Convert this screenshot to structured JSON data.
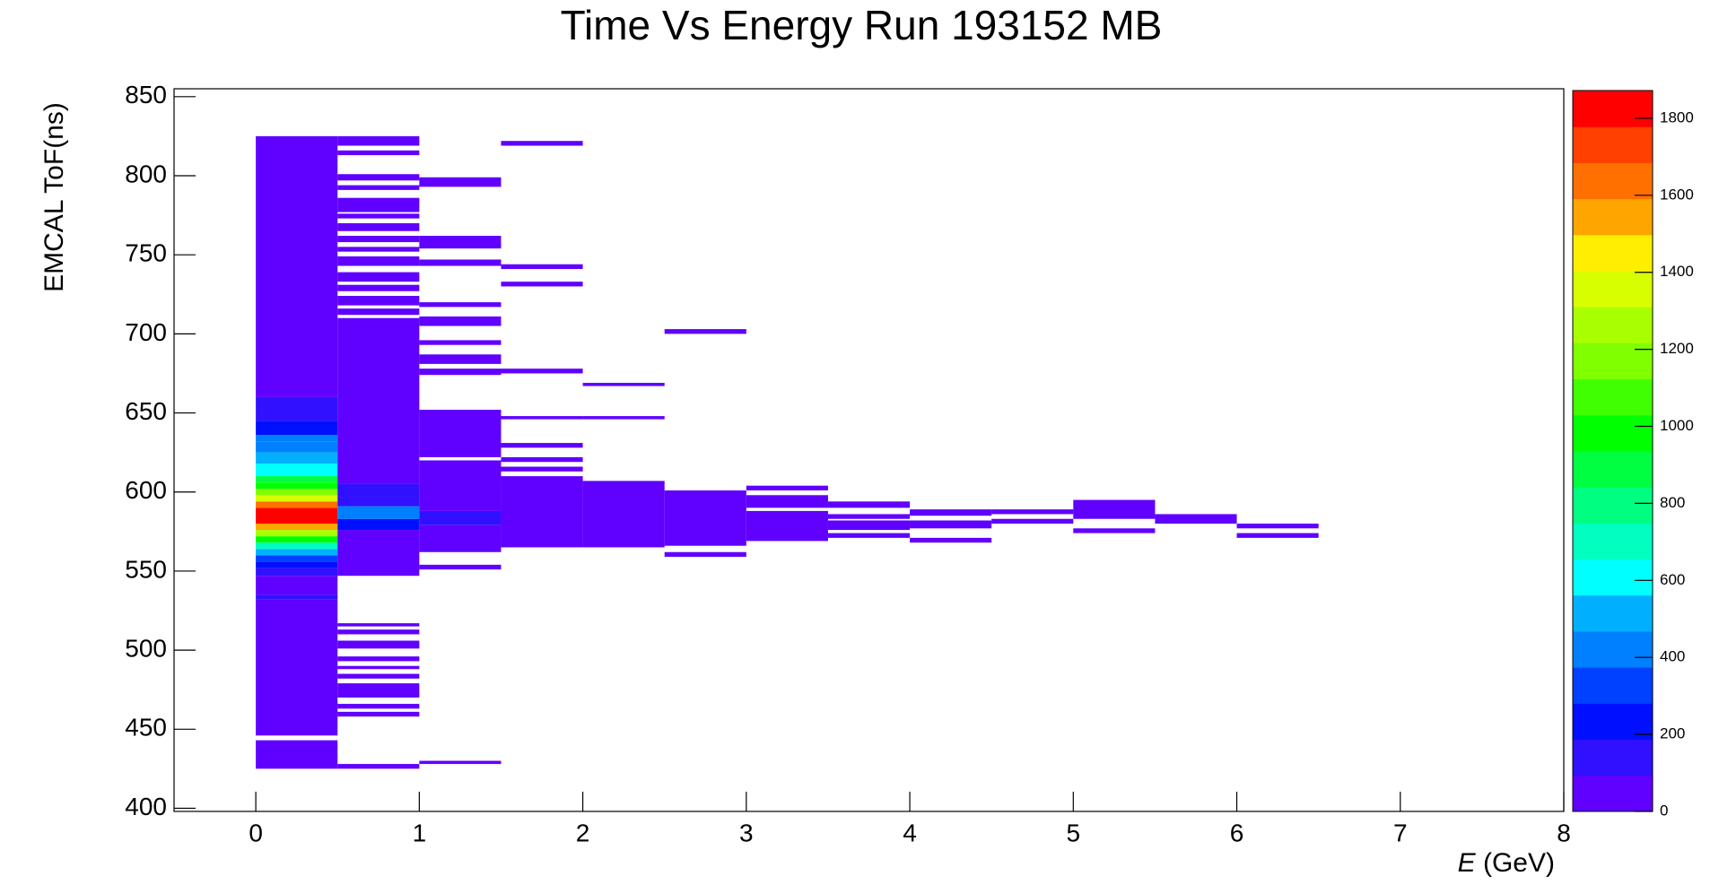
{
  "chart_data": {
    "type": "heatmap",
    "title": "Time Vs Energy Run 193152 MB",
    "x_label": {
      "symbol": "E",
      "unit": "(GeV)"
    },
    "y_label": "EMCAL ToF(ns)",
    "xlim": [
      -0.5,
      8
    ],
    "xticks": [
      0,
      1,
      2,
      3,
      4,
      5,
      6,
      7,
      8
    ],
    "ylim": [
      398,
      855
    ],
    "yticks": [
      400,
      450,
      500,
      550,
      600,
      650,
      700,
      750,
      800,
      850
    ],
    "zlim": [
      0,
      1872
    ],
    "zticks": [
      0,
      200,
      400,
      600,
      800,
      1000,
      1200,
      1400,
      1600,
      1800
    ],
    "palette": [
      "#6000ff",
      "#3010ff",
      "#0010ff",
      "#0040ff",
      "#0080ff",
      "#00b0ff",
      "#00ffff",
      "#00ffc0",
      "#00ff80",
      "#00ff40",
      "#00ff00",
      "#40ff00",
      "#80ff00",
      "#a8ff00",
      "#d8ff00",
      "#ffee00",
      "#ffa500",
      "#ff7000",
      "#ff4000",
      "#ff0000"
    ],
    "cells": [
      [
        0,
        0.5,
        425,
        443,
        20
      ],
      [
        0,
        0.5,
        446,
        532,
        30
      ],
      [
        0,
        0.5,
        532,
        535,
        150
      ],
      [
        0,
        0.5,
        535,
        547,
        30
      ],
      [
        0,
        0.5,
        547,
        552,
        120
      ],
      [
        0,
        0.5,
        552,
        556,
        250
      ],
      [
        0,
        0.5,
        556,
        560,
        350
      ],
      [
        0,
        0.5,
        560,
        564,
        500
      ],
      [
        0,
        0.5,
        564,
        568,
        700
      ],
      [
        0,
        0.5,
        568,
        572,
        1000
      ],
      [
        0,
        0.5,
        572,
        576,
        1300
      ],
      [
        0,
        0.5,
        576,
        580,
        1500
      ],
      [
        0,
        0.5,
        580,
        590,
        1850
      ],
      [
        0,
        0.5,
        590,
        594,
        1650
      ],
      [
        0,
        0.5,
        594,
        598,
        1400
      ],
      [
        0,
        0.5,
        598,
        602,
        1200
      ],
      [
        0,
        0.5,
        602,
        606,
        1000
      ],
      [
        0,
        0.5,
        606,
        610,
        850
      ],
      [
        0,
        0.5,
        610,
        618,
        650
      ],
      [
        0,
        0.5,
        618,
        625,
        500
      ],
      [
        0,
        0.5,
        625,
        632,
        380
      ],
      [
        0,
        0.5,
        632,
        636,
        450
      ],
      [
        0,
        0.5,
        636,
        645,
        250
      ],
      [
        0,
        0.5,
        645,
        652,
        180
      ],
      [
        0,
        0.5,
        652,
        660,
        120
      ],
      [
        0,
        0.5,
        660,
        825,
        40
      ],
      [
        0.5,
        1,
        425,
        428,
        5
      ],
      [
        0.5,
        1,
        458,
        461,
        5
      ],
      [
        0.5,
        1,
        463,
        466,
        5
      ],
      [
        0.5,
        1,
        470,
        479,
        5
      ],
      [
        0.5,
        1,
        482,
        485,
        5
      ],
      [
        0.5,
        1,
        488,
        490,
        5
      ],
      [
        0.5,
        1,
        493,
        496,
        5
      ],
      [
        0.5,
        1,
        501,
        506,
        5
      ],
      [
        0.5,
        1,
        510,
        513,
        5
      ],
      [
        0.5,
        1,
        515,
        517,
        5
      ],
      [
        0.5,
        1,
        547,
        576,
        40
      ],
      [
        0.5,
        1,
        576,
        583,
        220
      ],
      [
        0.5,
        1,
        583,
        591,
        400
      ],
      [
        0.5,
        1,
        591,
        597,
        150
      ],
      [
        0.5,
        1,
        597,
        605,
        120
      ],
      [
        0.5,
        1,
        605,
        710,
        25
      ],
      [
        0.5,
        1,
        712,
        716,
        5
      ],
      [
        0.5,
        1,
        718,
        724,
        5
      ],
      [
        0.5,
        1,
        727,
        731,
        5
      ],
      [
        0.5,
        1,
        733,
        739,
        5
      ],
      [
        0.5,
        1,
        743,
        749,
        5
      ],
      [
        0.5,
        1,
        752,
        755,
        5
      ],
      [
        0.5,
        1,
        758,
        762,
        5
      ],
      [
        0.5,
        1,
        765,
        770,
        5
      ],
      [
        0.5,
        1,
        773,
        776,
        5
      ],
      [
        0.5,
        1,
        777,
        786,
        5
      ],
      [
        0.5,
        1,
        791,
        794,
        5
      ],
      [
        0.5,
        1,
        797,
        801,
        5
      ],
      [
        0.5,
        1,
        813,
        816,
        5
      ],
      [
        0.5,
        1,
        819,
        825,
        5
      ],
      [
        1,
        1.5,
        428,
        430,
        5
      ],
      [
        1,
        1.5,
        551,
        554,
        5
      ],
      [
        1,
        1.5,
        562,
        579,
        25
      ],
      [
        1,
        1.5,
        579,
        588,
        120
      ],
      [
        1,
        1.5,
        588,
        620,
        30
      ],
      [
        1,
        1.5,
        622,
        652,
        15
      ],
      [
        1,
        1.5,
        674,
        678,
        5
      ],
      [
        1,
        1.5,
        681,
        687,
        5
      ],
      [
        1,
        1.5,
        693,
        696,
        5
      ],
      [
        1,
        1.5,
        705,
        711,
        5
      ],
      [
        1,
        1.5,
        717,
        720,
        5
      ],
      [
        1,
        1.5,
        743,
        747,
        5
      ],
      [
        1,
        1.5,
        754,
        762,
        5
      ],
      [
        1,
        1.5,
        793,
        799,
        5
      ],
      [
        1.5,
        2,
        565,
        610,
        15
      ],
      [
        1.5,
        2,
        613,
        616,
        5
      ],
      [
        1.5,
        2,
        619,
        622,
        5
      ],
      [
        1.5,
        2,
        628,
        631,
        5
      ],
      [
        1.5,
        2,
        646,
        648,
        5
      ],
      [
        1.5,
        2,
        675,
        678,
        5
      ],
      [
        1.5,
        2,
        730,
        733,
        5
      ],
      [
        1.5,
        2,
        741,
        744,
        5
      ],
      [
        1.5,
        2,
        819,
        822,
        5
      ],
      [
        2,
        2.5,
        565,
        607,
        12
      ],
      [
        2,
        2.5,
        646,
        648,
        5
      ],
      [
        2,
        2.5,
        667,
        669,
        5
      ],
      [
        2.5,
        3,
        559,
        562,
        5
      ],
      [
        2.5,
        3,
        566,
        601,
        8
      ],
      [
        2.5,
        3,
        700,
        703,
        5
      ],
      [
        3,
        3.5,
        569,
        588,
        5
      ],
      [
        3,
        3.5,
        590,
        598,
        5
      ],
      [
        3,
        3.5,
        601,
        604,
        5
      ],
      [
        3.5,
        4,
        571,
        574,
        5
      ],
      [
        3.5,
        4,
        576,
        582,
        5
      ],
      [
        3.5,
        4,
        583,
        586,
        5
      ],
      [
        3.5,
        4,
        590,
        594,
        5
      ],
      [
        4,
        4.5,
        568,
        571,
        5
      ],
      [
        4,
        4.5,
        577,
        582,
        5
      ],
      [
        4,
        4.5,
        585,
        589,
        5
      ],
      [
        4.5,
        5,
        580,
        583,
        5
      ],
      [
        4.5,
        5,
        586,
        589,
        5
      ],
      [
        5,
        5.5,
        574,
        577,
        5
      ],
      [
        5,
        5.5,
        583,
        595,
        5
      ],
      [
        5.5,
        6,
        580,
        586,
        5
      ],
      [
        6,
        6.5,
        571,
        574,
        5
      ],
      [
        6,
        6.5,
        577,
        580,
        5
      ]
    ]
  }
}
